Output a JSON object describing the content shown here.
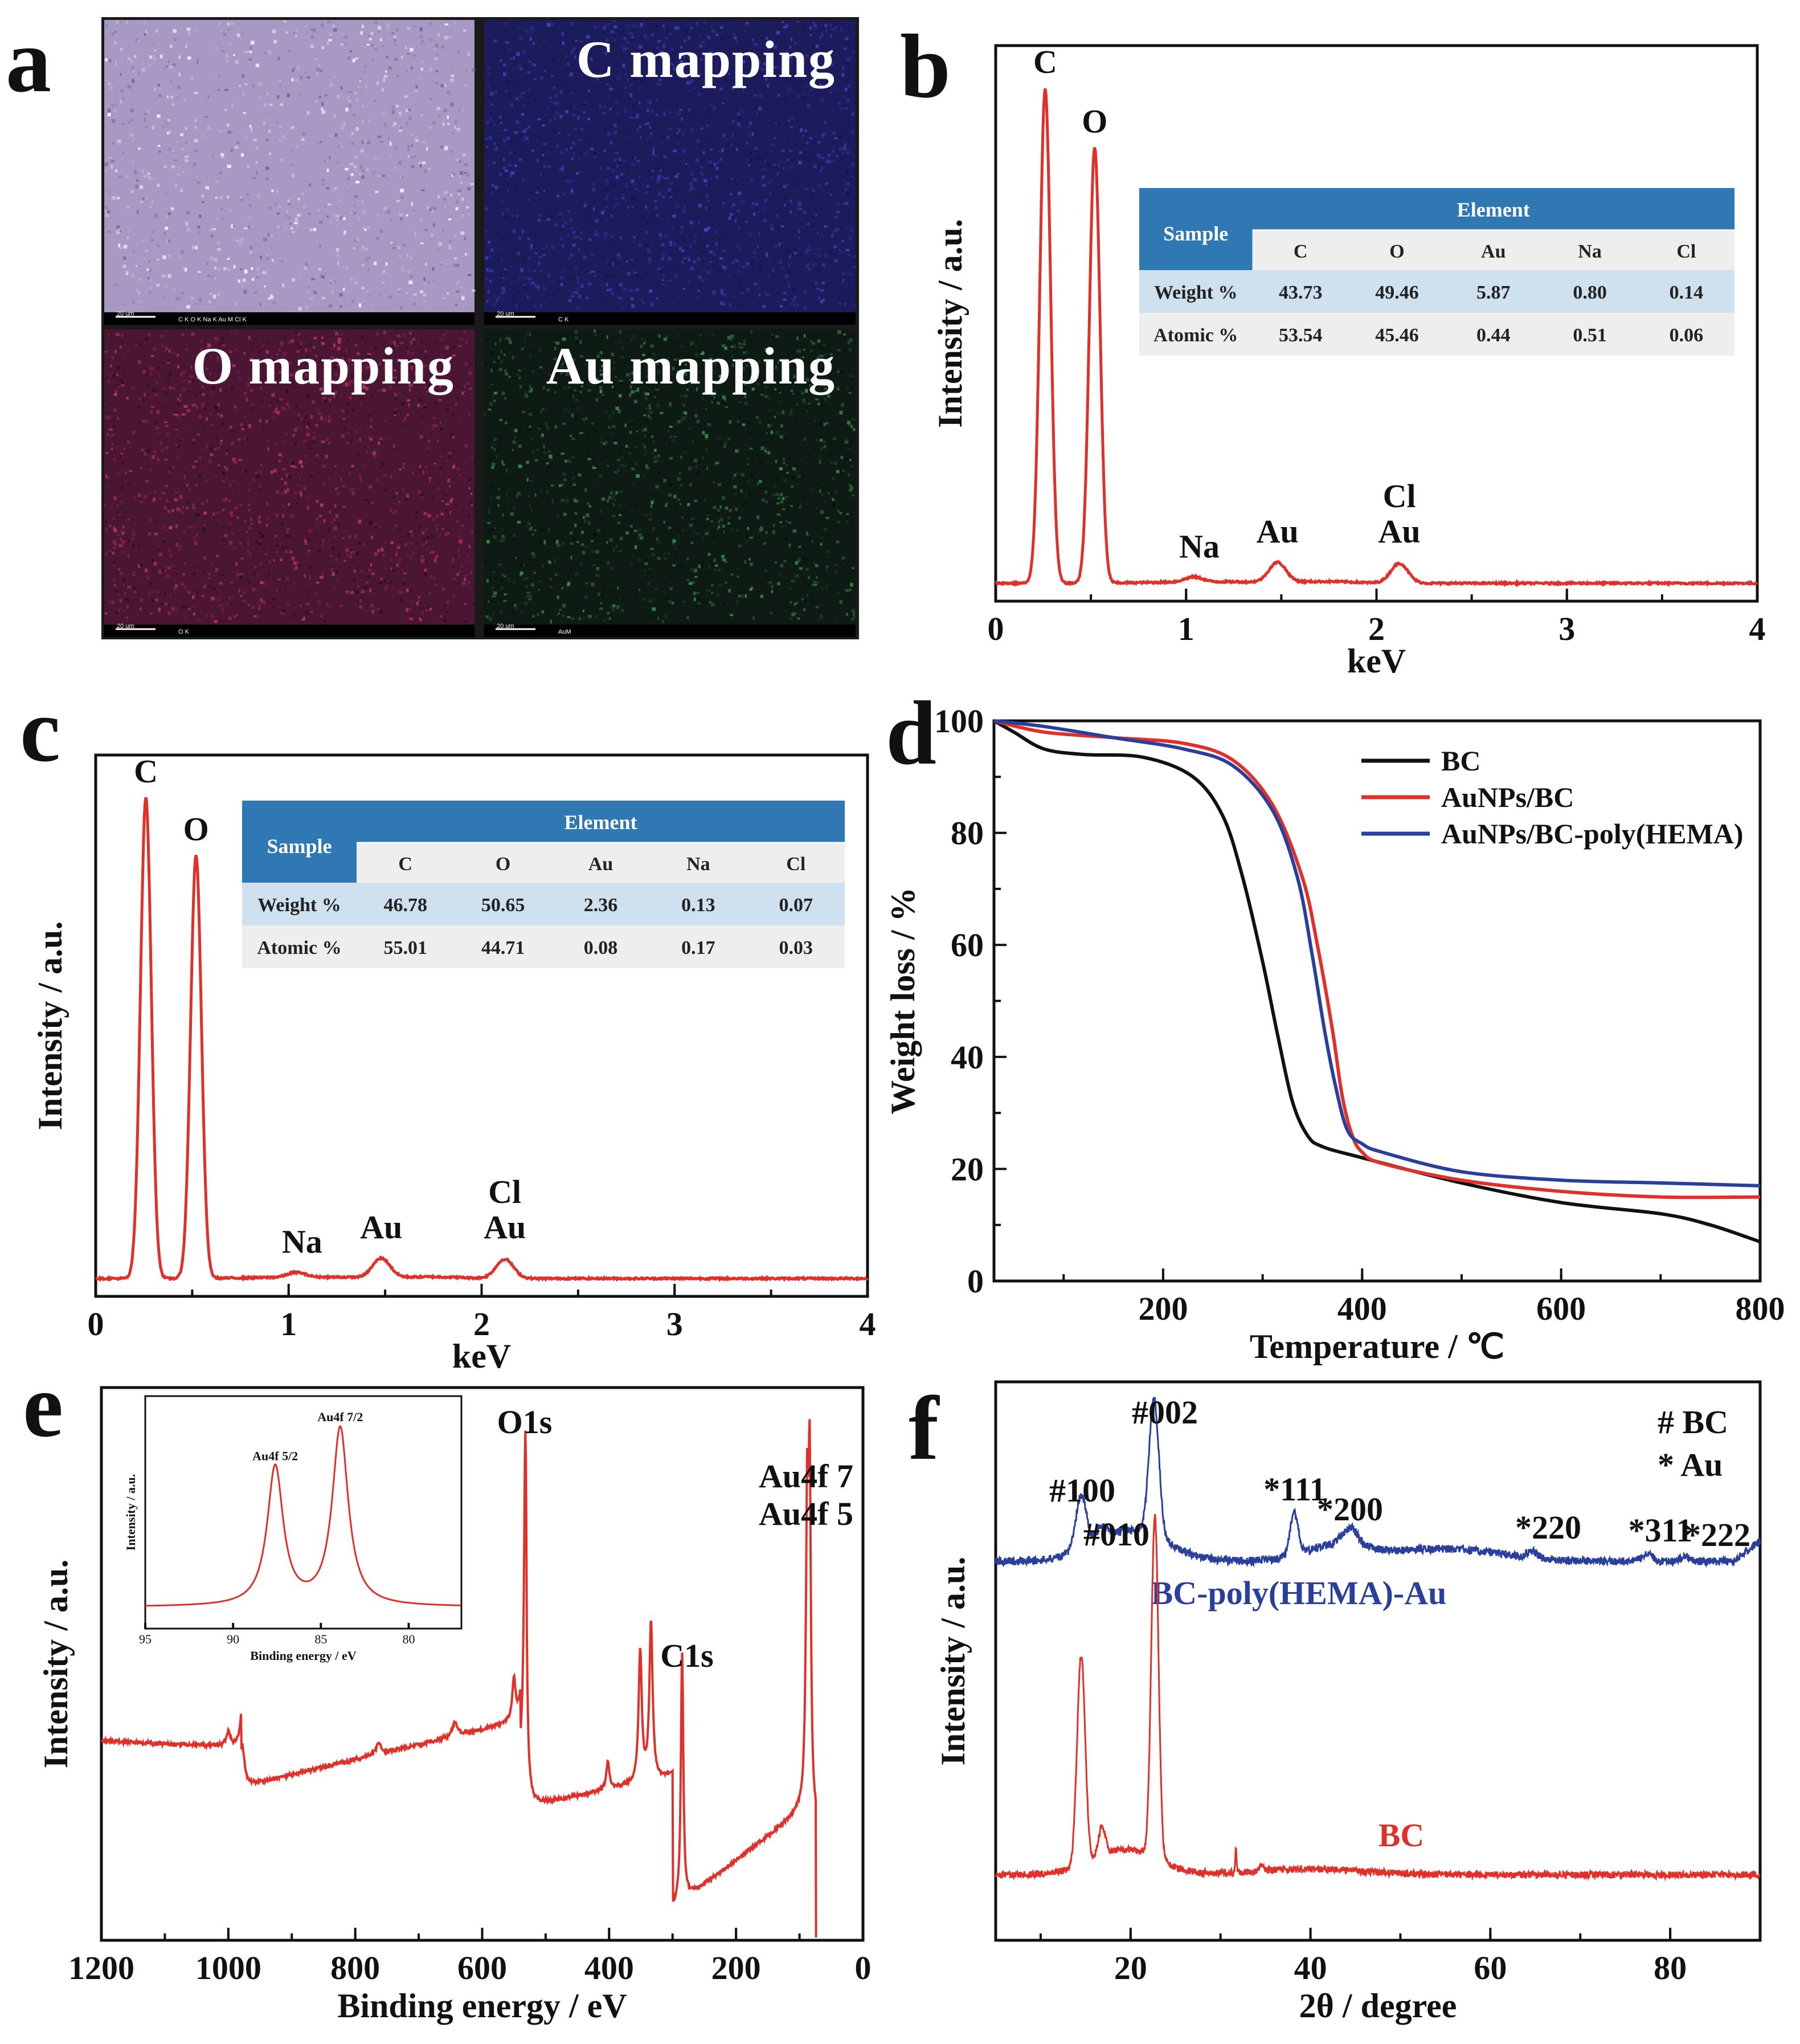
{
  "figure": {
    "panel_letters": [
      "a",
      "b",
      "c",
      "d",
      "e",
      "f"
    ]
  },
  "mapping": {
    "tiles": [
      {
        "title": "",
        "scale": "20 um",
        "tag": "C K  O K  Na K  Au M  Cl K",
        "color": "#a898c4"
      },
      {
        "title": "C mapping",
        "scale": "20 um",
        "tag": "C K",
        "color": "#1c1c5c"
      },
      {
        "title": "O mapping",
        "scale": "20 um",
        "tag": "O K",
        "color": "#4a1634"
      },
      {
        "title": "Au mapping",
        "scale": "20 um",
        "tag": "AuM",
        "color": "#0e1a14"
      }
    ]
  },
  "colors": {
    "red": "#e0302a",
    "blue": "#2a3f9c",
    "black": "#111111",
    "table_header": "#2f78b4",
    "table_row1": "#cfe0ef",
    "table_row2": "#eeeeee"
  },
  "chart_data": [
    {
      "id": "b",
      "type": "line",
      "title": "",
      "xlabel": "keV",
      "ylabel": "Intensity / a.u.",
      "xlim": [
        0,
        4
      ],
      "ylim": [
        0,
        100
      ],
      "xticks": [
        "0",
        "1",
        "2",
        "3",
        "4"
      ],
      "peaks": [
        {
          "label": "C",
          "x": 0.26,
          "height": 100
        },
        {
          "label": "O",
          "x": 0.52,
          "height": 88
        },
        {
          "label": "Na",
          "x": 1.04,
          "height": 1
        },
        {
          "label": "Au",
          "x": 1.48,
          "height": 4
        },
        {
          "label": "Cl\nAu",
          "x": 2.12,
          "height": 4
        }
      ],
      "table": {
        "header": "Element",
        "row_label_header": "Sample",
        "columns": [
          "C",
          "O",
          "Au",
          "Na",
          "Cl"
        ],
        "rows": [
          {
            "label": "Weight %",
            "values": [
              "43.73",
              "49.46",
              "5.87",
              "0.80",
              "0.14"
            ]
          },
          {
            "label": "Atomic %",
            "values": [
              "53.54",
              "45.46",
              "0.44",
              "0.51",
              "0.06"
            ]
          }
        ]
      }
    },
    {
      "id": "c",
      "type": "line",
      "title": "",
      "xlabel": "keV",
      "ylabel": "Intensity / a.u.",
      "xlim": [
        0,
        4
      ],
      "ylim": [
        0,
        100
      ],
      "xticks": [
        "0",
        "1",
        "2",
        "3",
        "4"
      ],
      "peaks": [
        {
          "label": "C",
          "x": 0.26,
          "height": 100
        },
        {
          "label": "O",
          "x": 0.52,
          "height": 88
        },
        {
          "label": "Na",
          "x": 1.04,
          "height": 1
        },
        {
          "label": "Au",
          "x": 1.48,
          "height": 4
        },
        {
          "label": "Cl\nAu",
          "x": 2.12,
          "height": 4
        }
      ],
      "table": {
        "header": "Element",
        "row_label_header": "Sample",
        "columns": [
          "C",
          "O",
          "Au",
          "Na",
          "Cl"
        ],
        "rows": [
          {
            "label": "Weight %",
            "values": [
              "46.78",
              "50.65",
              "2.36",
              "0.13",
              "0.07"
            ]
          },
          {
            "label": "Atomic %",
            "values": [
              "55.01",
              "44.71",
              "0.08",
              "0.17",
              "0.03"
            ]
          }
        ]
      }
    },
    {
      "id": "d",
      "type": "line",
      "title": "",
      "xlabel": "Temperature / ℃",
      "ylabel": "Weight loss / %",
      "xlim": [
        30,
        800
      ],
      "ylim": [
        0,
        100
      ],
      "xticks": [
        "200",
        "400",
        "600",
        "800"
      ],
      "yticks": [
        "0",
        "20",
        "40",
        "60",
        "80",
        "100"
      ],
      "legend_position": "top-right",
      "series": [
        {
          "name": "BC",
          "color": "#111111",
          "x": [
            30,
            50,
            80,
            120,
            180,
            230,
            260,
            280,
            300,
            315,
            330,
            345,
            360,
            400,
            500,
            600,
            700,
            750,
            800
          ],
          "y": [
            100,
            98,
            95,
            94,
            93.5,
            90,
            83,
            72,
            57,
            44,
            32,
            26,
            24,
            22,
            17.5,
            14,
            12,
            10,
            7
          ]
        },
        {
          "name": "AuNPs/BC",
          "color": "#e0302a",
          "x": [
            30,
            80,
            150,
            220,
            270,
            310,
            340,
            355,
            370,
            380,
            390,
            400,
            420,
            500,
            600,
            700,
            800
          ],
          "y": [
            100,
            98,
            97,
            96,
            93,
            85,
            72,
            60,
            45,
            33,
            26,
            23,
            21,
            18,
            16,
            15,
            15
          ]
        },
        {
          "name": "AuNPs/BC-poly(HEMA)",
          "color": "#2a3f9c",
          "x": [
            30,
            80,
            150,
            220,
            270,
            310,
            335,
            350,
            362,
            373,
            385,
            400,
            420,
            500,
            600,
            700,
            800
          ],
          "y": [
            100,
            99,
            97,
            95,
            92,
            84,
            72,
            58,
            45,
            35,
            27,
            24.5,
            23,
            19.5,
            18,
            17.5,
            17
          ]
        }
      ]
    },
    {
      "id": "e",
      "type": "line",
      "title": "",
      "xlabel": "Binding energy / eV",
      "ylabel": "Intensity / a.u.",
      "xlim": [
        1200,
        0
      ],
      "ylim": [
        0,
        100
      ],
      "xticks": [
        "1200",
        "1000",
        "800",
        "600",
        "400",
        "200",
        "0"
      ],
      "peak_labels": [
        {
          "label": "O1s",
          "x": 532
        },
        {
          "label": "C1s",
          "x": 285
        },
        {
          "label": "Au4f 7\nAu4f 5",
          "x": 85
        }
      ],
      "inset": {
        "xlabel": "Binding energy / eV",
        "ylabel": "Intensity / a.u.",
        "xlim": [
          95,
          77
        ],
        "xticks": [
          "95",
          "90",
          "85",
          "80"
        ],
        "peaks": [
          {
            "label": "Au4f 5/2",
            "x": 87.6,
            "height": 78
          },
          {
            "label": "Au4f 7/2",
            "x": 83.9,
            "height": 100
          }
        ]
      }
    },
    {
      "id": "f",
      "type": "line",
      "title": "",
      "xlabel": "2θ / degree",
      "ylabel": "Intensity / a.u.",
      "xlim": [
        5,
        90
      ],
      "xticks": [
        "20",
        "40",
        "60",
        "80"
      ],
      "legend_text": [
        "# BC",
        "* Au"
      ],
      "series": [
        {
          "name": "BC-poly(HEMA)-Au",
          "color": "#2a3f9c",
          "peaks": [
            {
              "label": "#100",
              "x": 14.5
            },
            {
              "label": "#010",
              "x": 16.8
            },
            {
              "label": "#002",
              "x": 22.6
            },
            {
              "label": "*111",
              "x": 38.2
            },
            {
              "label": "*200",
              "x": 44.4
            },
            {
              "label": "*220",
              "x": 64.6
            },
            {
              "label": "*311",
              "x": 77.5
            },
            {
              "label": "*222",
              "x": 81.7
            }
          ]
        },
        {
          "name": "BC",
          "color": "#e0302a",
          "peaks": [
            {
              "label": "",
              "x": 14.5
            },
            {
              "label": "",
              "x": 16.8
            },
            {
              "label": "",
              "x": 22.6
            }
          ]
        }
      ]
    }
  ]
}
